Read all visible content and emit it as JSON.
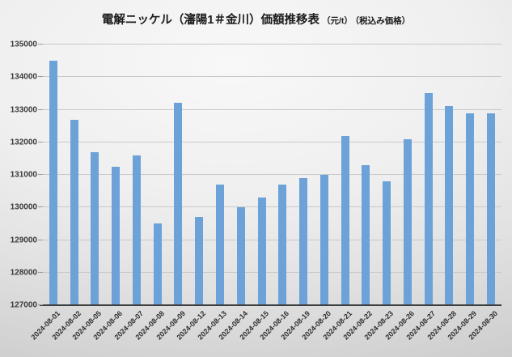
{
  "title": {
    "main": "電解ニッケル（瀋陽1＃金川）価額推移表",
    "unit": "（元/t）",
    "note": "（税込み価格）"
  },
  "chart_data": {
    "type": "bar",
    "title": "電解ニッケル（瀋陽1＃金川）価額推移表（元/t）（税込み価格）",
    "categories": [
      "2024-08-01",
      "2024-08-02",
      "2024-08-05",
      "2024-08-06",
      "2024-08-07",
      "2024-08-08",
      "2024-08-09",
      "2024-08-12",
      "2024-08-13",
      "2024-08-14",
      "2024-08-15",
      "2024-08-16",
      "2024-08-19",
      "2024-08-20",
      "2024-08-21",
      "2024-08-22",
      "2024-08-23",
      "2024-08-26",
      "2024-08-27",
      "2024-08-28",
      "2024-08-29",
      "2024-08-30"
    ],
    "values": [
      134500,
      132700,
      131700,
      131250,
      131600,
      129500,
      133200,
      129700,
      130700,
      130000,
      130300,
      130700,
      130900,
      131000,
      132200,
      131300,
      130800,
      132100,
      133500,
      133100,
      132880,
      132880
    ],
    "xlabel": "",
    "ylabel": "",
    "ylim": [
      127000,
      135000
    ],
    "yticks": [
      127000,
      128000,
      129000,
      130000,
      131000,
      132000,
      133000,
      134000,
      135000
    ],
    "grid": true,
    "legend": "none",
    "colors": {
      "bar": "#6ca2d7",
      "gridline": "#c9c9c9",
      "axis": "#3f3f3f",
      "tick": "#9a9a9a"
    }
  }
}
